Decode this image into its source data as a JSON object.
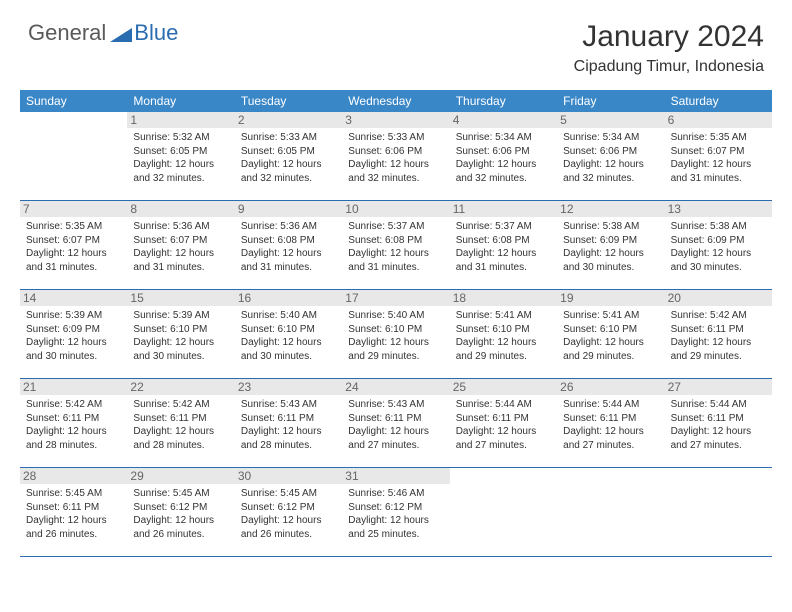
{
  "logo": {
    "text1": "General",
    "text2": "Blue",
    "color_gray": "#5a5a5a",
    "color_blue": "#2a6cb0"
  },
  "title": "January 2024",
  "location": "Cipadung Timur, Indonesia",
  "colors": {
    "header_bg": "#3a87c8",
    "header_fg": "#ffffff",
    "daynum_bg": "#e8e8e8",
    "border": "#2a6cb0",
    "text": "#333333"
  },
  "fonts": {
    "title_size": 30,
    "location_size": 16,
    "header_size": 12,
    "detail_size": 10
  },
  "day_names": [
    "Sunday",
    "Monday",
    "Tuesday",
    "Wednesday",
    "Thursday",
    "Friday",
    "Saturday"
  ],
  "weeks": [
    [
      {
        "day": null
      },
      {
        "day": 1,
        "sunrise": "5:32 AM",
        "sunset": "6:05 PM",
        "daylight": "12 hours and 32 minutes."
      },
      {
        "day": 2,
        "sunrise": "5:33 AM",
        "sunset": "6:05 PM",
        "daylight": "12 hours and 32 minutes."
      },
      {
        "day": 3,
        "sunrise": "5:33 AM",
        "sunset": "6:06 PM",
        "daylight": "12 hours and 32 minutes."
      },
      {
        "day": 4,
        "sunrise": "5:34 AM",
        "sunset": "6:06 PM",
        "daylight": "12 hours and 32 minutes."
      },
      {
        "day": 5,
        "sunrise": "5:34 AM",
        "sunset": "6:06 PM",
        "daylight": "12 hours and 32 minutes."
      },
      {
        "day": 6,
        "sunrise": "5:35 AM",
        "sunset": "6:07 PM",
        "daylight": "12 hours and 31 minutes."
      }
    ],
    [
      {
        "day": 7,
        "sunrise": "5:35 AM",
        "sunset": "6:07 PM",
        "daylight": "12 hours and 31 minutes."
      },
      {
        "day": 8,
        "sunrise": "5:36 AM",
        "sunset": "6:07 PM",
        "daylight": "12 hours and 31 minutes."
      },
      {
        "day": 9,
        "sunrise": "5:36 AM",
        "sunset": "6:08 PM",
        "daylight": "12 hours and 31 minutes."
      },
      {
        "day": 10,
        "sunrise": "5:37 AM",
        "sunset": "6:08 PM",
        "daylight": "12 hours and 31 minutes."
      },
      {
        "day": 11,
        "sunrise": "5:37 AM",
        "sunset": "6:08 PM",
        "daylight": "12 hours and 31 minutes."
      },
      {
        "day": 12,
        "sunrise": "5:38 AM",
        "sunset": "6:09 PM",
        "daylight": "12 hours and 30 minutes."
      },
      {
        "day": 13,
        "sunrise": "5:38 AM",
        "sunset": "6:09 PM",
        "daylight": "12 hours and 30 minutes."
      }
    ],
    [
      {
        "day": 14,
        "sunrise": "5:39 AM",
        "sunset": "6:09 PM",
        "daylight": "12 hours and 30 minutes."
      },
      {
        "day": 15,
        "sunrise": "5:39 AM",
        "sunset": "6:10 PM",
        "daylight": "12 hours and 30 minutes."
      },
      {
        "day": 16,
        "sunrise": "5:40 AM",
        "sunset": "6:10 PM",
        "daylight": "12 hours and 30 minutes."
      },
      {
        "day": 17,
        "sunrise": "5:40 AM",
        "sunset": "6:10 PM",
        "daylight": "12 hours and 29 minutes."
      },
      {
        "day": 18,
        "sunrise": "5:41 AM",
        "sunset": "6:10 PM",
        "daylight": "12 hours and 29 minutes."
      },
      {
        "day": 19,
        "sunrise": "5:41 AM",
        "sunset": "6:10 PM",
        "daylight": "12 hours and 29 minutes."
      },
      {
        "day": 20,
        "sunrise": "5:42 AM",
        "sunset": "6:11 PM",
        "daylight": "12 hours and 29 minutes."
      }
    ],
    [
      {
        "day": 21,
        "sunrise": "5:42 AM",
        "sunset": "6:11 PM",
        "daylight": "12 hours and 28 minutes."
      },
      {
        "day": 22,
        "sunrise": "5:42 AM",
        "sunset": "6:11 PM",
        "daylight": "12 hours and 28 minutes."
      },
      {
        "day": 23,
        "sunrise": "5:43 AM",
        "sunset": "6:11 PM",
        "daylight": "12 hours and 28 minutes."
      },
      {
        "day": 24,
        "sunrise": "5:43 AM",
        "sunset": "6:11 PM",
        "daylight": "12 hours and 27 minutes."
      },
      {
        "day": 25,
        "sunrise": "5:44 AM",
        "sunset": "6:11 PM",
        "daylight": "12 hours and 27 minutes."
      },
      {
        "day": 26,
        "sunrise": "5:44 AM",
        "sunset": "6:11 PM",
        "daylight": "12 hours and 27 minutes."
      },
      {
        "day": 27,
        "sunrise": "5:44 AM",
        "sunset": "6:11 PM",
        "daylight": "12 hours and 27 minutes."
      }
    ],
    [
      {
        "day": 28,
        "sunrise": "5:45 AM",
        "sunset": "6:11 PM",
        "daylight": "12 hours and 26 minutes."
      },
      {
        "day": 29,
        "sunrise": "5:45 AM",
        "sunset": "6:12 PM",
        "daylight": "12 hours and 26 minutes."
      },
      {
        "day": 30,
        "sunrise": "5:45 AM",
        "sunset": "6:12 PM",
        "daylight": "12 hours and 26 minutes."
      },
      {
        "day": 31,
        "sunrise": "5:46 AM",
        "sunset": "6:12 PM",
        "daylight": "12 hours and 25 minutes."
      },
      {
        "day": null
      },
      {
        "day": null
      },
      {
        "day": null
      }
    ]
  ]
}
